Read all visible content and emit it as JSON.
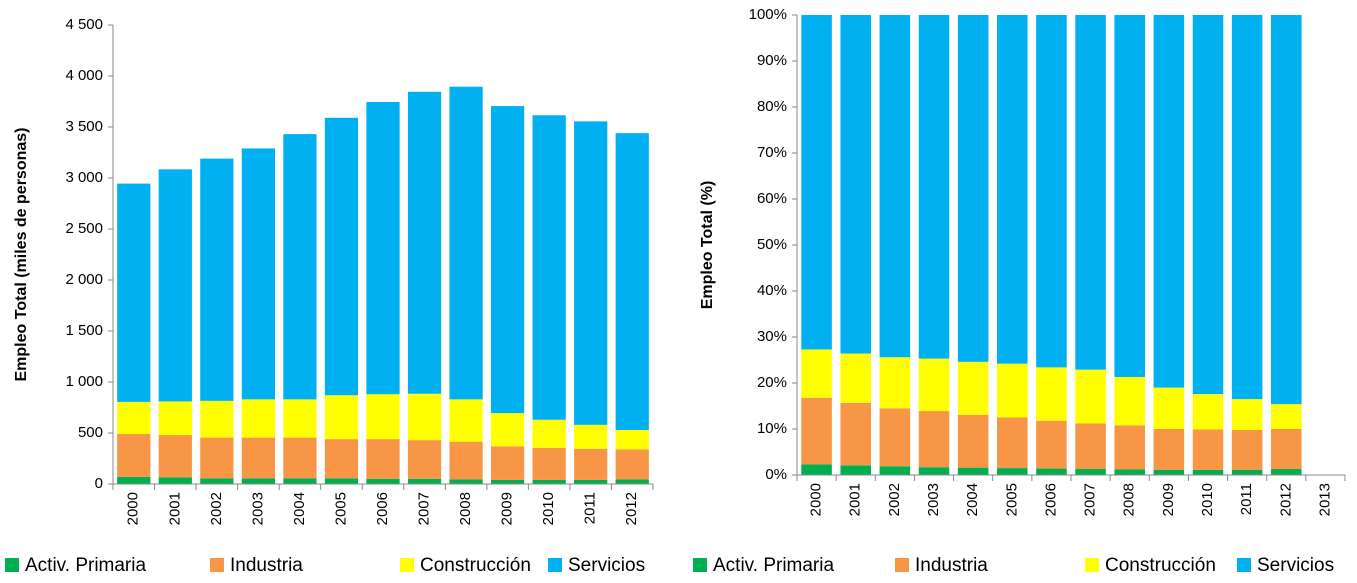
{
  "chart_data": [
    {
      "type": "stacked_bar",
      "ylabel": "Empleo Total (miles de personas)",
      "categories": [
        "2000",
        "2001",
        "2002",
        "2003",
        "2004",
        "2005",
        "2006",
        "2007",
        "2008",
        "2009",
        "2010",
        "2011",
        "2012"
      ],
      "series": [
        {
          "name": "Activ. Primaria",
          "color": "#00b050",
          "values": [
            70,
            65,
            55,
            55,
            55,
            55,
            50,
            50,
            45,
            40,
            40,
            40,
            45
          ]
        },
        {
          "name": "Industria",
          "color": "#f79646",
          "values": [
            420,
            415,
            400,
            400,
            400,
            385,
            390,
            380,
            370,
            330,
            315,
            305,
            295
          ]
        },
        {
          "name": "Construcción",
          "color": "#ffff00",
          "values": [
            315,
            330,
            360,
            375,
            375,
            430,
            440,
            455,
            415,
            325,
            275,
            235,
            190
          ]
        },
        {
          "name": "Servicios",
          "color": "#00b0f0",
          "values": [
            2140,
            2275,
            2375,
            2460,
            2600,
            2720,
            2865,
            2960,
            3065,
            3010,
            2985,
            2975,
            2910
          ]
        }
      ],
      "ylim": [
        0,
        4500
      ],
      "yticks": [
        0,
        500,
        {
          "value": 1000,
          "label": "1 000"
        },
        {
          "value": 1500,
          "label": "1 500"
        },
        {
          "value": 2000,
          "label": "2 000"
        },
        {
          "value": 2500,
          "label": "2 500"
        },
        {
          "value": 3000,
          "label": "3 000"
        },
        {
          "value": 3500,
          "label": "3 500"
        },
        {
          "value": 4000,
          "label": "4 000"
        },
        {
          "value": 4500,
          "label": "4 500"
        }
      ],
      "grid": false
    },
    {
      "type": "stacked_bar",
      "ylabel": "Empleo Total (%)",
      "categories": [
        "2000",
        "2001",
        "2002",
        "2003",
        "2004",
        "2005",
        "2006",
        "2007",
        "2008",
        "2009",
        "2010",
        "2011",
        "2012",
        "2013"
      ],
      "series": [
        {
          "name": "Activ. Primaria",
          "color": "#00b050",
          "values": [
            2.3,
            2.1,
            1.9,
            1.7,
            1.6,
            1.5,
            1.4,
            1.3,
            1.2,
            1.1,
            1.1,
            1.1,
            1.3,
            null
          ]
        },
        {
          "name": "Industria",
          "color": "#f79646",
          "values": [
            14.5,
            13.6,
            12.6,
            12.2,
            11.5,
            11.0,
            10.4,
            9.9,
            9.6,
            8.9,
            8.8,
            8.7,
            8.7,
            null
          ]
        },
        {
          "name": "Construcción",
          "color": "#ffff00",
          "values": [
            10.5,
            10.7,
            11.1,
            11.4,
            11.5,
            11.7,
            11.6,
            11.7,
            10.5,
            9.0,
            7.7,
            6.7,
            5.4,
            null
          ]
        },
        {
          "name": "Servicios",
          "color": "#00b0f0",
          "values": [
            72.7,
            73.6,
            74.4,
            74.7,
            75.4,
            75.8,
            76.6,
            77.1,
            78.7,
            81.0,
            82.4,
            83.5,
            84.6,
            null
          ]
        }
      ],
      "ylim": [
        0,
        100
      ],
      "yticks": [
        {
          "value": 0,
          "label": "0%"
        },
        {
          "value": 10,
          "label": "10%"
        },
        {
          "value": 20,
          "label": "20%"
        },
        {
          "value": 30,
          "label": "30%"
        },
        {
          "value": 40,
          "label": "40%"
        },
        {
          "value": 50,
          "label": "50%"
        },
        {
          "value": 60,
          "label": "60%"
        },
        {
          "value": 70,
          "label": "70%"
        },
        {
          "value": 80,
          "label": "80%"
        },
        {
          "value": 90,
          "label": "90%"
        },
        {
          "value": 100,
          "label": "100%"
        }
      ],
      "grid": false
    }
  ]
}
